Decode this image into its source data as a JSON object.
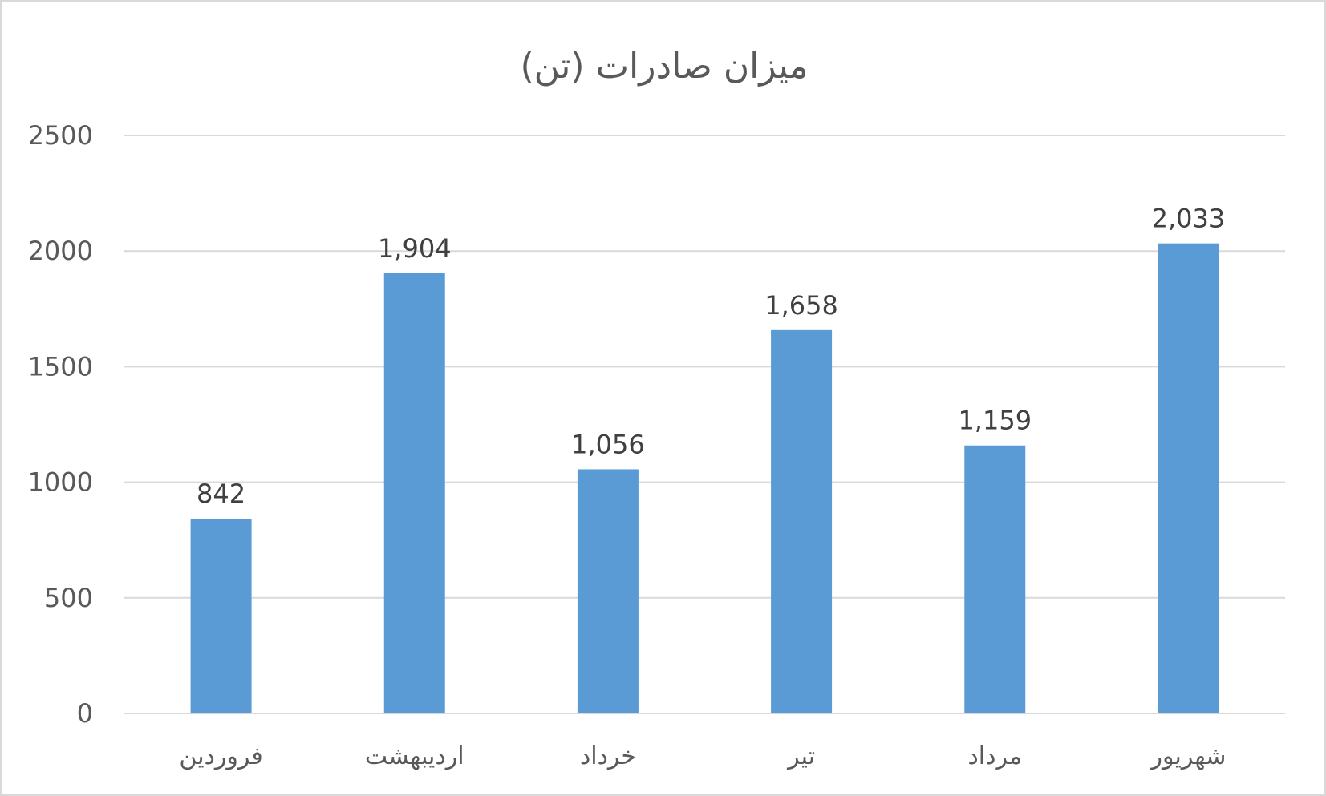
{
  "chart_data": {
    "type": "bar",
    "title": "میزان صادرات (تن)",
    "categories": [
      "فروردین",
      "اردیبهشت",
      "خرداد",
      "تیر",
      "مرداد",
      "شهریور"
    ],
    "values": [
      842,
      1904,
      1056,
      1658,
      1159,
      2033
    ],
    "data_labels": [
      "842",
      "1,904",
      "1,056",
      "1,658",
      "1,159",
      "2,033"
    ],
    "ylim": [
      0,
      2500
    ],
    "yticks": [
      "0",
      "500",
      "1000",
      "1500",
      "2000",
      "2500"
    ],
    "grid": true,
    "legend": "none",
    "bar_color": "#5b9bd5"
  }
}
